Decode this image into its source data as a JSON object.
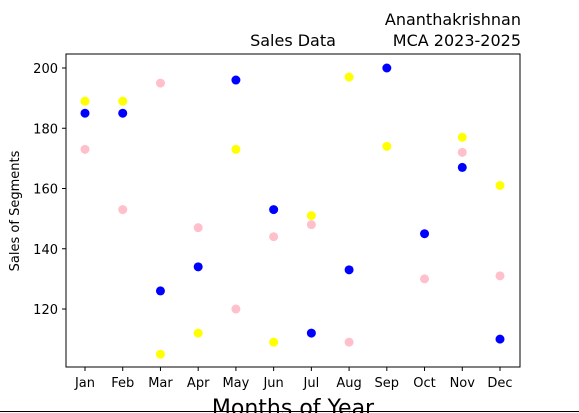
{
  "chart_data": {
    "type": "scatter",
    "title": "Sales Data",
    "title_right": [
      "Ananthakrishnan",
      "MCA 2023-2025"
    ],
    "xlabel": "Months of Year",
    "ylabel": "Sales of Segments",
    "categories": [
      "Jan",
      "Feb",
      "Mar",
      "Apr",
      "May",
      "Jun",
      "Jul",
      "Aug",
      "Sep",
      "Oct",
      "Nov",
      "Dec"
    ],
    "ylim": [
      100,
      205
    ],
    "yticks": [
      120,
      140,
      160,
      180,
      200
    ],
    "grid": false,
    "series": [
      {
        "color": "#0000ff",
        "values": [
          185,
          185,
          126,
          134,
          196,
          153,
          112,
          133,
          200,
          145,
          167,
          110
        ]
      },
      {
        "color": "#ffff00",
        "values": [
          189,
          189,
          105,
          112,
          173,
          109,
          151,
          197,
          174,
          null,
          177,
          161
        ]
      },
      {
        "color": "#ffc0cb",
        "values": [
          173,
          153,
          195,
          147,
          120,
          144,
          148,
          109,
          null,
          130,
          172,
          131
        ]
      }
    ]
  }
}
